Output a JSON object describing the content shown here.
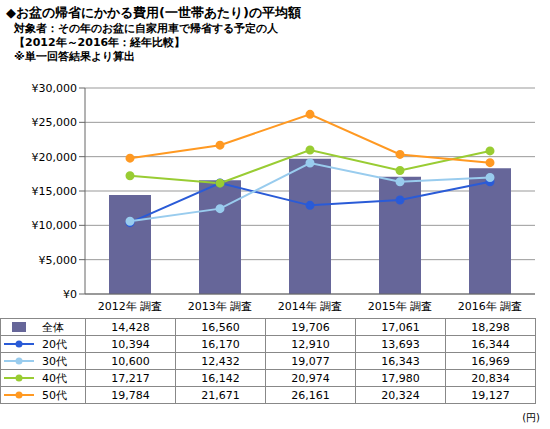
{
  "chart_data": {
    "type": "bar",
    "title": "◆お盆の帰省にかかる費用(一世帯あたり)の平均額",
    "subtitle": "対象者：その年のお盆に自家用車で帰省する予定の人",
    "annotations": [
      "【2012年～2016年：経年比較】",
      "※単一回答結果より算出",
      "(円)"
    ],
    "categories": [
      "2012年 調査",
      "2013年 調査",
      "2014年 調査",
      "2015年 調査",
      "2016年 調査"
    ],
    "ylim": [
      0,
      30000
    ],
    "yticks": [
      {
        "value": 0,
        "label": "¥0"
      },
      {
        "value": 5000,
        "label": "¥5,000"
      },
      {
        "value": 10000,
        "label": "¥10,000"
      },
      {
        "value": 15000,
        "label": "¥15,000"
      },
      {
        "value": 20000,
        "label": "¥20,000"
      },
      {
        "value": 25000,
        "label": "¥25,000"
      },
      {
        "value": 30000,
        "label": "¥30,000"
      }
    ],
    "grid": true,
    "series": [
      {
        "name": "全体",
        "type": "bar",
        "color": "#666699",
        "values": [
          14428,
          16560,
          19706,
          17061,
          18298
        ],
        "value_labels": [
          "14,428",
          "16,560",
          "19,706",
          "17,061",
          "18,298"
        ]
      },
      {
        "name": "20代",
        "type": "line",
        "color": "#2a5bd7",
        "marker": "circle",
        "values": [
          10394,
          16170,
          12910,
          13693,
          16344
        ],
        "value_labels": [
          "10,394",
          "16,170",
          "12,910",
          "13,693",
          "16,344"
        ]
      },
      {
        "name": "30代",
        "type": "line",
        "color": "#99ccee",
        "marker": "circle",
        "values": [
          10600,
          12432,
          19077,
          16343,
          16969
        ],
        "value_labels": [
          "10,600",
          "12,432",
          "19,077",
          "16,343",
          "16,969"
        ]
      },
      {
        "name": "40代",
        "type": "line",
        "color": "#99cc33",
        "marker": "circle",
        "values": [
          17217,
          16142,
          20974,
          17980,
          20834
        ],
        "value_labels": [
          "17,217",
          "16,142",
          "20,974",
          "17,980",
          "20,834"
        ]
      },
      {
        "name": "50代",
        "type": "line",
        "color": "#ff9922",
        "marker": "circle",
        "values": [
          19784,
          21671,
          26161,
          20324,
          19127
        ],
        "value_labels": [
          "19,784",
          "21,671",
          "26,161",
          "20,324",
          "19,127"
        ]
      }
    ]
  }
}
